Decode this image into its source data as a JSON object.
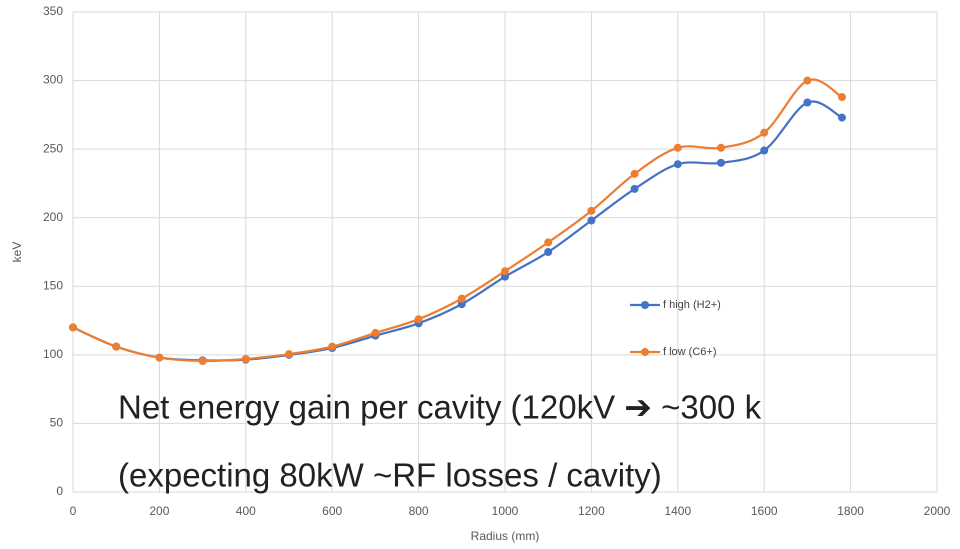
{
  "chart_data": {
    "type": "line",
    "x_label": "Radius (mm)",
    "y_label": "keV",
    "x": [
      0,
      100,
      200,
      300,
      400,
      500,
      600,
      700,
      800,
      900,
      1000,
      1100,
      1200,
      1300,
      1400,
      1500,
      1600,
      1700,
      1780
    ],
    "series": [
      {
        "name": "f high (H2+)",
        "color": "#4472c4",
        "values": [
          120,
          106,
          98,
          96,
          96.5,
          100,
          105,
          114,
          123,
          137,
          157,
          175,
          198,
          221,
          239,
          240,
          249,
          284,
          273
        ]
      },
      {
        "name": "f low (C6+)",
        "color": "#ed7d31",
        "values": [
          120,
          106,
          98,
          95.5,
          97,
          100.5,
          106,
          116,
          126,
          141,
          161,
          182,
          205,
          232,
          251,
          251,
          262,
          300,
          288
        ]
      }
    ],
    "xlim": [
      0,
      2000
    ],
    "xticks": [
      0,
      200,
      400,
      600,
      800,
      1000,
      1200,
      1400,
      1600,
      1800,
      2000
    ],
    "ylim": [
      0,
      350
    ],
    "yticks": [
      0,
      50,
      100,
      150,
      200,
      250,
      300,
      350
    ],
    "grid": true,
    "legend": "right",
    "smooth": true,
    "annotations": [
      "Net energy gain per cavity (120kV ➔ ~300 k",
      "(expecting 80kW ~RF losses / cavity)"
    ]
  }
}
